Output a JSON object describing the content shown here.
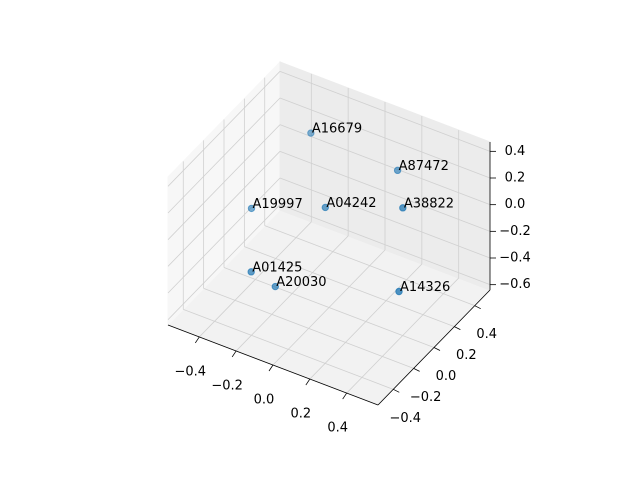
{
  "chart_data": {
    "type": "scatter3d",
    "labels": [
      "A16679",
      "A87472",
      "A19997",
      "A04242",
      "A38822",
      "A01425",
      "A20030",
      "A14326"
    ],
    "x": [
      -0.22,
      0.19,
      -0.36,
      -0.02,
      0.34,
      -0.24,
      -0.17,
      0.38
    ],
    "y": [
      0.22,
      0.33,
      -0.11,
      0.0,
      0.11,
      -0.33,
      -0.22,
      0.0
    ],
    "z": [
      0.38,
      0.23,
      0.0,
      0.1,
      0.2,
      -0.24,
      -0.4,
      -0.32
    ],
    "color": "#1f77b4",
    "xlim": [
      -0.57,
      0.57
    ],
    "ylim": [
      -0.55,
      0.55
    ],
    "zlim": [
      -0.64,
      0.47
    ],
    "xticks": [
      {
        "value": -0.4,
        "label": "−0.4"
      },
      {
        "value": -0.2,
        "label": "−0.2"
      },
      {
        "value": 0,
        "label": "0.0"
      },
      0.2,
      0.4
    ],
    "yticks": [
      {
        "value": -0.4,
        "label": "−0.4"
      },
      {
        "value": -0.2,
        "label": "−0.2"
      },
      {
        "value": 0,
        "label": "0.0"
      },
      0.2,
      0.4
    ],
    "zticks": [
      {
        "value": -0.6,
        "label": "−0.6"
      },
      {
        "value": -0.4,
        "label": "−0.4"
      },
      {
        "value": -0.2,
        "label": "−0.2"
      },
      {
        "value": 0,
        "label": "0.0"
      },
      0.2,
      0.4
    ],
    "grid": true
  }
}
